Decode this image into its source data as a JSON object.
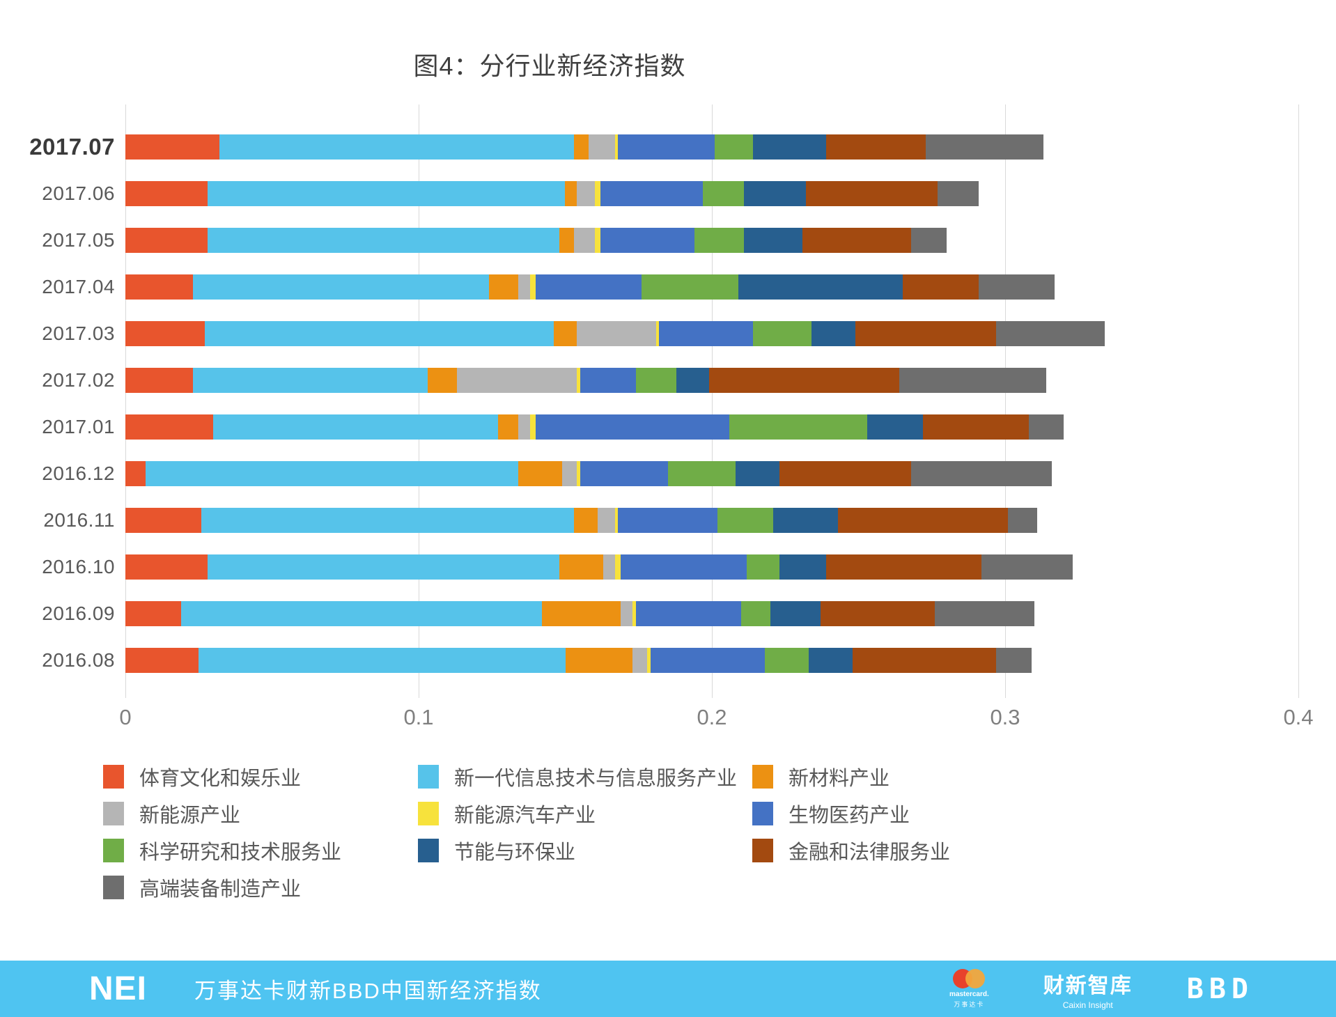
{
  "title": "图4：分行业新经济指数",
  "chart_data": {
    "type": "bar",
    "orientation": "horizontal",
    "stacked": true,
    "grid": "vertical",
    "legend_position": "bottom",
    "xlim": [
      0,
      0.4
    ],
    "x_ticks": [
      "0",
      "0.1",
      "0.2",
      "0.3",
      "0.4"
    ],
    "highlight_category": "2017.07",
    "categories": [
      "2017.07",
      "2017.06",
      "2017.05",
      "2017.04",
      "2017.03",
      "2017.02",
      "2017.01",
      "2016.12",
      "2016.11",
      "2016.10",
      "2016.09",
      "2016.08"
    ],
    "series": [
      {
        "name": "体育文化和娱乐业",
        "color": "#e8552d",
        "values": [
          0.032,
          0.028,
          0.028,
          0.023,
          0.027,
          0.023,
          0.03,
          0.007,
          0.026,
          0.028,
          0.019,
          0.025
        ]
      },
      {
        "name": "新一代信息技术与信息服务产业",
        "color": "#56c3ea",
        "values": [
          0.121,
          0.122,
          0.12,
          0.101,
          0.119,
          0.08,
          0.097,
          0.127,
          0.127,
          0.12,
          0.123,
          0.125
        ]
      },
      {
        "name": "新材料产业",
        "color": "#ec9112",
        "values": [
          0.005,
          0.004,
          0.005,
          0.01,
          0.008,
          0.01,
          0.007,
          0.015,
          0.008,
          0.015,
          0.027,
          0.023
        ]
      },
      {
        "name": "新能源产业",
        "color": "#b5b5b5",
        "values": [
          0.009,
          0.006,
          0.007,
          0.004,
          0.027,
          0.041,
          0.004,
          0.005,
          0.006,
          0.004,
          0.004,
          0.005
        ]
      },
      {
        "name": "新能源汽车产业",
        "color": "#f7e23c",
        "values": [
          0.001,
          0.002,
          0.002,
          0.002,
          0.001,
          0.001,
          0.002,
          0.001,
          0.001,
          0.002,
          0.001,
          0.001
        ]
      },
      {
        "name": "生物医药产业",
        "color": "#4472c4",
        "values": [
          0.033,
          0.035,
          0.032,
          0.036,
          0.032,
          0.019,
          0.066,
          0.03,
          0.034,
          0.043,
          0.036,
          0.039
        ]
      },
      {
        "name": "科学研究和技术服务业",
        "color": "#70ad47",
        "values": [
          0.013,
          0.014,
          0.017,
          0.033,
          0.02,
          0.014,
          0.047,
          0.023,
          0.019,
          0.011,
          0.01,
          0.015
        ]
      },
      {
        "name": "节能与环保业",
        "color": "#275f8f",
        "values": [
          0.025,
          0.021,
          0.02,
          0.056,
          0.015,
          0.011,
          0.019,
          0.015,
          0.022,
          0.016,
          0.017,
          0.015
        ]
      },
      {
        "name": "金融和法律服务业",
        "color": "#a34a10",
        "values": [
          0.034,
          0.045,
          0.037,
          0.026,
          0.048,
          0.065,
          0.036,
          0.045,
          0.058,
          0.053,
          0.039,
          0.049
        ]
      },
      {
        "name": "高端装备制造产业",
        "color": "#6e6e6e",
        "values": [
          0.04,
          0.014,
          0.012,
          0.026,
          0.037,
          0.05,
          0.012,
          0.048,
          0.01,
          0.031,
          0.034,
          0.012
        ]
      }
    ]
  },
  "footer": {
    "background": "#4fc4f1",
    "logo": "NEI",
    "subtitle": "万事达卡财新BBD中国新经济指数",
    "brands": {
      "mastercard_name": "mastercard.",
      "mastercard_cn": "万事达卡",
      "caixin_name": "财新智库",
      "caixin_sub": "Caixin Insight",
      "bbd": "BBD"
    }
  }
}
